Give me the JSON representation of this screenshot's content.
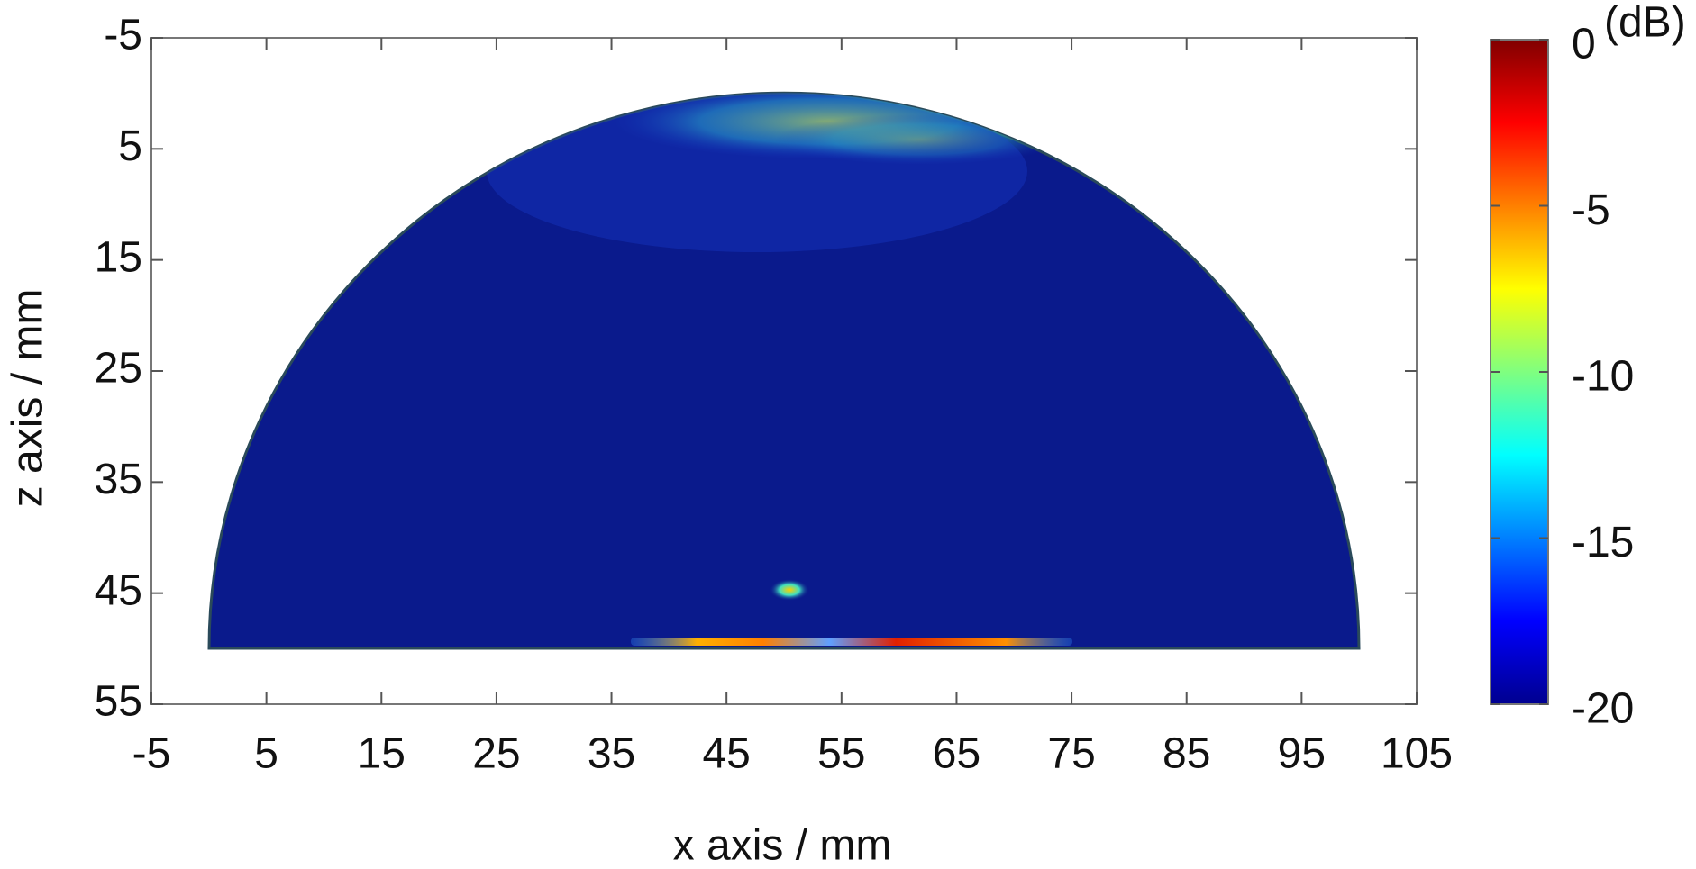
{
  "chart_data": {
    "type": "image",
    "xlabel": "x axis / mm",
    "ylabel": "z axis / mm",
    "xlim": [
      -5,
      105
    ],
    "xticks": [
      -5,
      5,
      15,
      25,
      35,
      45,
      55,
      65,
      75,
      85,
      95,
      105
    ],
    "ylim": [
      -5,
      55
    ],
    "y_reversed": true,
    "yticks": [
      -5,
      5,
      15,
      25,
      35,
      45,
      55
    ],
    "colorbar": {
      "label": "(dB)",
      "colormap": "jet",
      "lim": [
        -20,
        0
      ],
      "ticks": [
        0,
        -5,
        -10,
        -15,
        -20
      ]
    }
  }
}
